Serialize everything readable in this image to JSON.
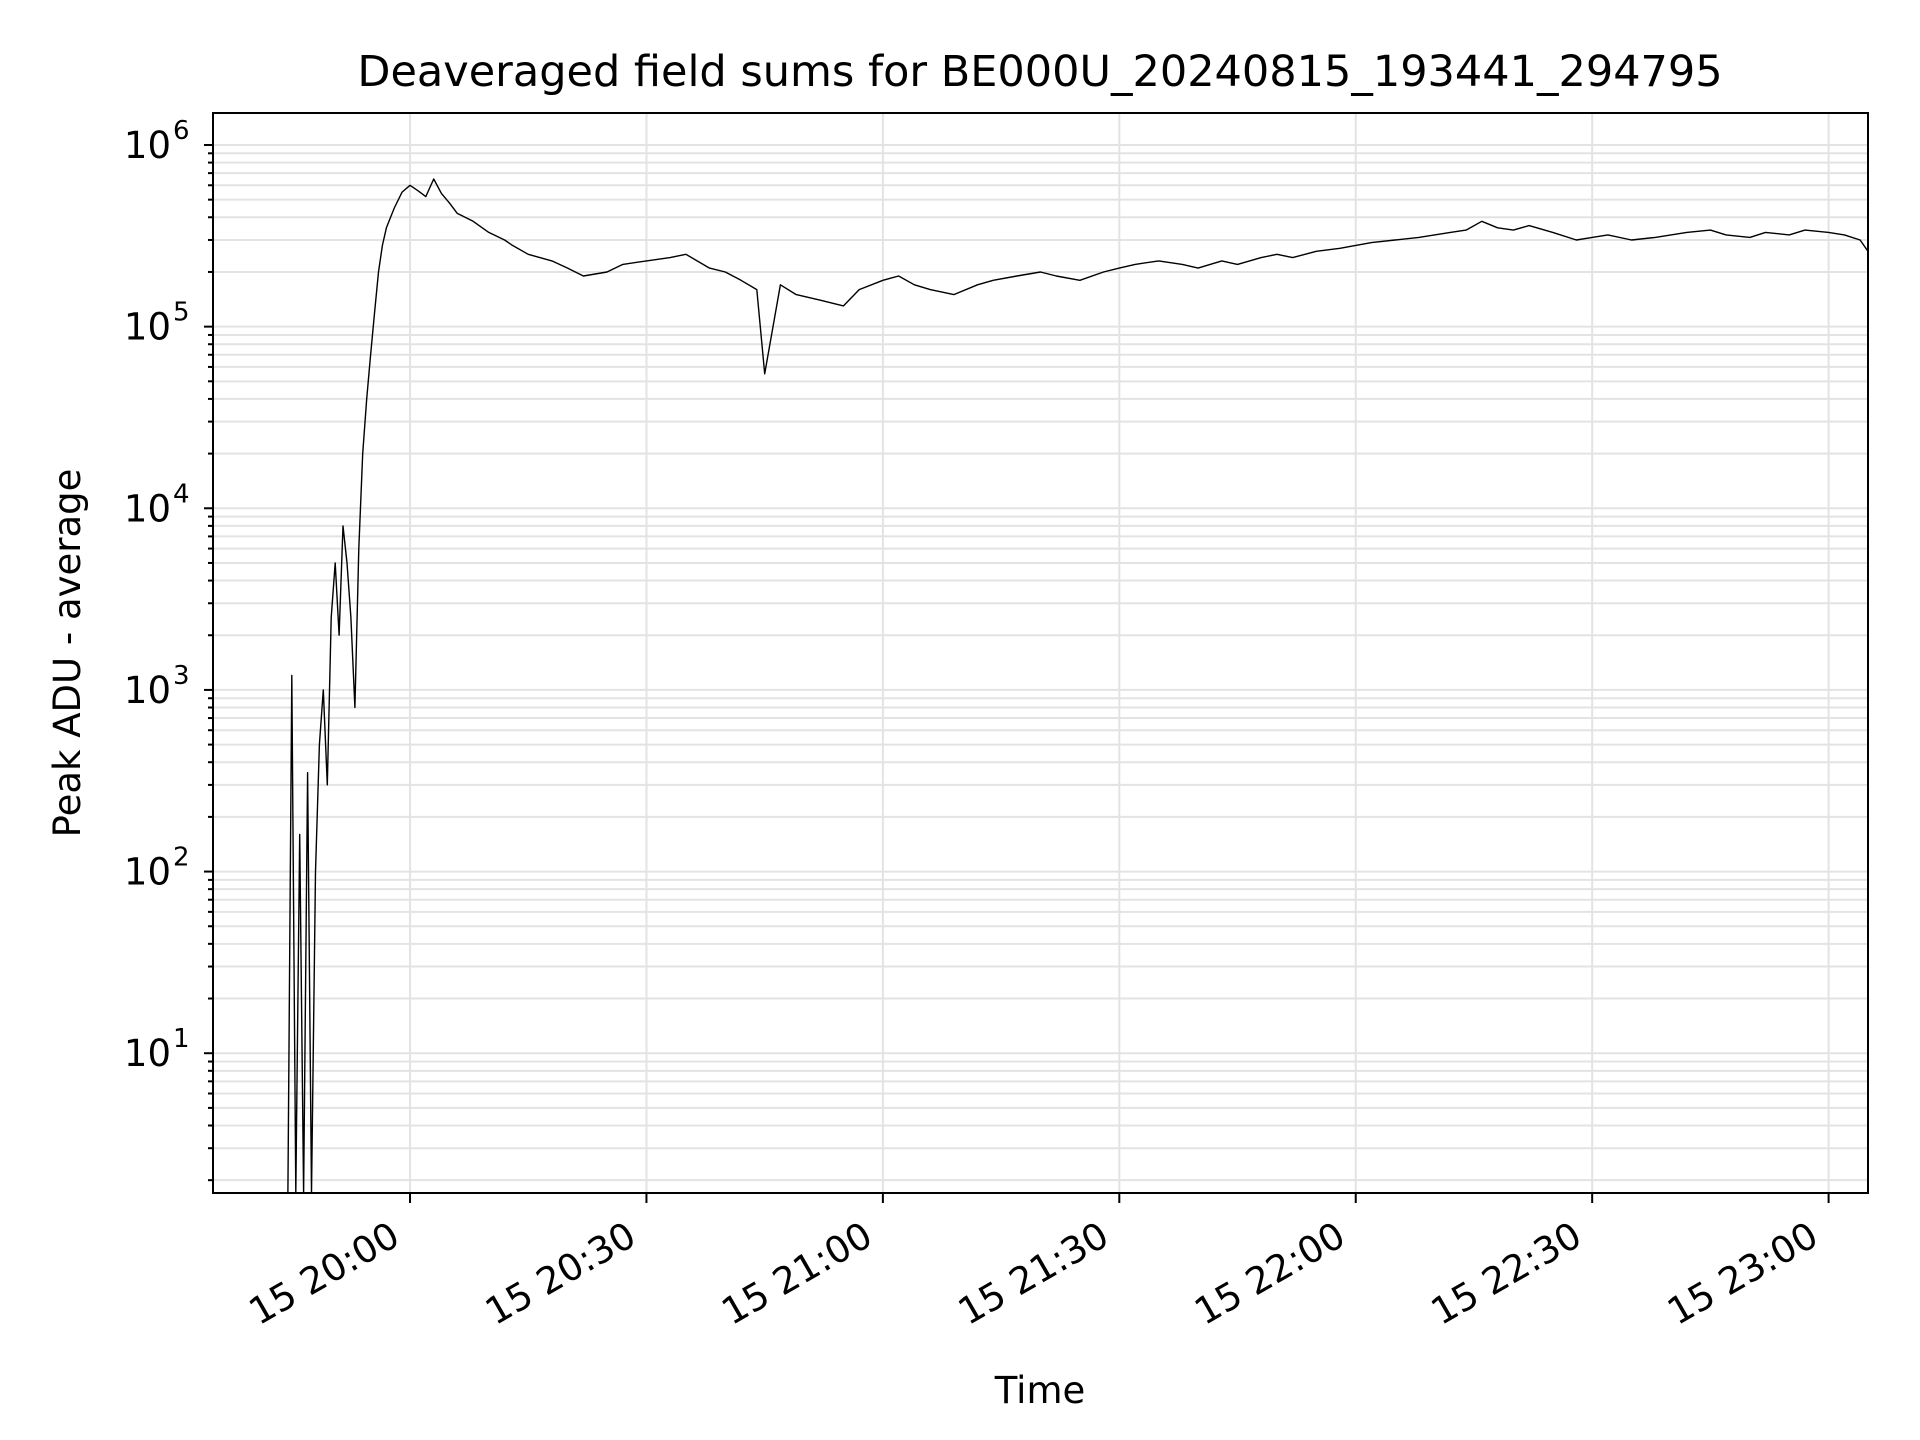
{
  "chart_data": {
    "type": "line",
    "title": "Deaveraged field sums for BE000U_20240815_193441_294795",
    "xlabel": "Time",
    "ylabel": "Peak ADU - average",
    "yscale": "log",
    "ylim": [
      1.7,
      1500000
    ],
    "xlim": [
      "2024-08-15 19:35:00",
      "2024-08-15 23:05:00"
    ],
    "grid": true,
    "x_ticks": [
      {
        "value": "2024-08-15 20:00",
        "label": "15 20:00"
      },
      {
        "value": "2024-08-15 20:30",
        "label": "15 20:30"
      },
      {
        "value": "2024-08-15 21:00",
        "label": "15 21:00"
      },
      {
        "value": "2024-08-15 21:30",
        "label": "15 21:30"
      },
      {
        "value": "2024-08-15 22:00",
        "label": "15 22:00"
      },
      {
        "value": "2024-08-15 22:30",
        "label": "15 22:30"
      },
      {
        "value": "2024-08-15 23:00",
        "label": "15 23:00"
      }
    ],
    "y_ticks": [
      {
        "value": 10,
        "base": "10",
        "exp": "1"
      },
      {
        "value": 100,
        "base": "10",
        "exp": "2"
      },
      {
        "value": 1000,
        "base": "10",
        "exp": "3"
      },
      {
        "value": 10000,
        "base": "10",
        "exp": "4"
      },
      {
        "value": 100000,
        "base": "10",
        "exp": "5"
      },
      {
        "value": 1000000,
        "base": "10",
        "exp": "6"
      }
    ],
    "series": [
      {
        "color": "#000000",
        "x": [
          "2024-08-15 19:44:30",
          "2024-08-15 19:45:00",
          "2024-08-15 19:45:30",
          "2024-08-15 19:46:00",
          "2024-08-15 19:46:30",
          "2024-08-15 19:47:00",
          "2024-08-15 19:47:30",
          "2024-08-15 19:48:00",
          "2024-08-15 19:48:30",
          "2024-08-15 19:49:00",
          "2024-08-15 19:49:30",
          "2024-08-15 19:50:00",
          "2024-08-15 19:50:30",
          "2024-08-15 19:51:00",
          "2024-08-15 19:51:30",
          "2024-08-15 19:52:00",
          "2024-08-15 19:52:30",
          "2024-08-15 19:53:00",
          "2024-08-15 19:53:30",
          "2024-08-15 19:54:00",
          "2024-08-15 19:54:30",
          "2024-08-15 19:55:00",
          "2024-08-15 19:55:30",
          "2024-08-15 19:56:00",
          "2024-08-15 19:56:30",
          "2024-08-15 19:57:00",
          "2024-08-15 19:58:00",
          "2024-08-15 19:59:00",
          "2024-08-15 20:00:00",
          "2024-08-15 20:01:00",
          "2024-08-15 20:02:00",
          "2024-08-15 20:03:00",
          "2024-08-15 20:04:00",
          "2024-08-15 20:05:00",
          "2024-08-15 20:06:00",
          "2024-08-15 20:08:00",
          "2024-08-15 20:10:00",
          "2024-08-15 20:12:00",
          "2024-08-15 20:13:00",
          "2024-08-15 20:15:00",
          "2024-08-15 20:18:00",
          "2024-08-15 20:20:00",
          "2024-08-15 20:22:00",
          "2024-08-15 20:25:00",
          "2024-08-15 20:27:00",
          "2024-08-15 20:30:00",
          "2024-08-15 20:33:00",
          "2024-08-15 20:35:00",
          "2024-08-15 20:38:00",
          "2024-08-15 20:40:00",
          "2024-08-15 20:42:00",
          "2024-08-15 20:44:00",
          "2024-08-15 20:45:00",
          "2024-08-15 20:47:00",
          "2024-08-15 20:49:00",
          "2024-08-15 20:52:00",
          "2024-08-15 20:55:00",
          "2024-08-15 20:57:00",
          "2024-08-15 21:00:00",
          "2024-08-15 21:02:00",
          "2024-08-15 21:04:00",
          "2024-08-15 21:06:00",
          "2024-08-15 21:09:00",
          "2024-08-15 21:12:00",
          "2024-08-15 21:14:00",
          "2024-08-15 21:17:00",
          "2024-08-15 21:20:00",
          "2024-08-15 21:22:00",
          "2024-08-15 21:25:00",
          "2024-08-15 21:28:00",
          "2024-08-15 21:30:00",
          "2024-08-15 21:32:00",
          "2024-08-15 21:35:00",
          "2024-08-15 21:38:00",
          "2024-08-15 21:40:00",
          "2024-08-15 21:43:00",
          "2024-08-15 21:45:00",
          "2024-08-15 21:48:00",
          "2024-08-15 21:50:00",
          "2024-08-15 21:52:00",
          "2024-08-15 21:55:00",
          "2024-08-15 21:58:00",
          "2024-08-15 22:00:00",
          "2024-08-15 22:02:00",
          "2024-08-15 22:05:00",
          "2024-08-15 22:08:00",
          "2024-08-15 22:10:00",
          "2024-08-15 22:12:00",
          "2024-08-15 22:14:00",
          "2024-08-15 22:16:00",
          "2024-08-15 22:18:00",
          "2024-08-15 22:20:00",
          "2024-08-15 22:22:00",
          "2024-08-15 22:25:00",
          "2024-08-15 22:28:00",
          "2024-08-15 22:30:00",
          "2024-08-15 22:32:00",
          "2024-08-15 22:35:00",
          "2024-08-15 22:38:00",
          "2024-08-15 22:40:00",
          "2024-08-15 22:42:00",
          "2024-08-15 22:45:00",
          "2024-08-15 22:47:00",
          "2024-08-15 22:50:00",
          "2024-08-15 22:52:00",
          "2024-08-15 22:55:00",
          "2024-08-15 22:57:00",
          "2024-08-15 23:00:00",
          "2024-08-15 23:02:00",
          "2024-08-15 23:04:00",
          "2024-08-15 23:05:00"
        ],
        "y": [
          1.7,
          1200,
          1.7,
          160,
          1.7,
          350,
          1.7,
          100,
          500,
          1000,
          300,
          2500,
          5000,
          2000,
          8000,
          5000,
          2500,
          800,
          6000,
          20000,
          40000,
          70000,
          120000,
          200000,
          280000,
          350000,
          450000,
          550000,
          600000,
          560000,
          520000,
          650000,
          540000,
          480000,
          420000,
          380000,
          330000,
          300000,
          280000,
          250000,
          230000,
          210000,
          190000,
          200000,
          220000,
          230000,
          240000,
          250000,
          210000,
          200000,
          180000,
          160000,
          55000,
          170000,
          150000,
          140000,
          130000,
          160000,
          180000,
          190000,
          170000,
          160000,
          150000,
          170000,
          180000,
          190000,
          200000,
          190000,
          180000,
          200000,
          210000,
          220000,
          230000,
          220000,
          210000,
          230000,
          220000,
          240000,
          250000,
          240000,
          260000,
          270000,
          280000,
          290000,
          300000,
          310000,
          320000,
          330000,
          340000,
          380000,
          350000,
          340000,
          360000,
          330000,
          300000,
          310000,
          320000,
          300000,
          310000,
          320000,
          330000,
          340000,
          320000,
          310000,
          330000,
          320000,
          340000,
          330000,
          320000,
          300000,
          260000
        ]
      }
    ]
  }
}
